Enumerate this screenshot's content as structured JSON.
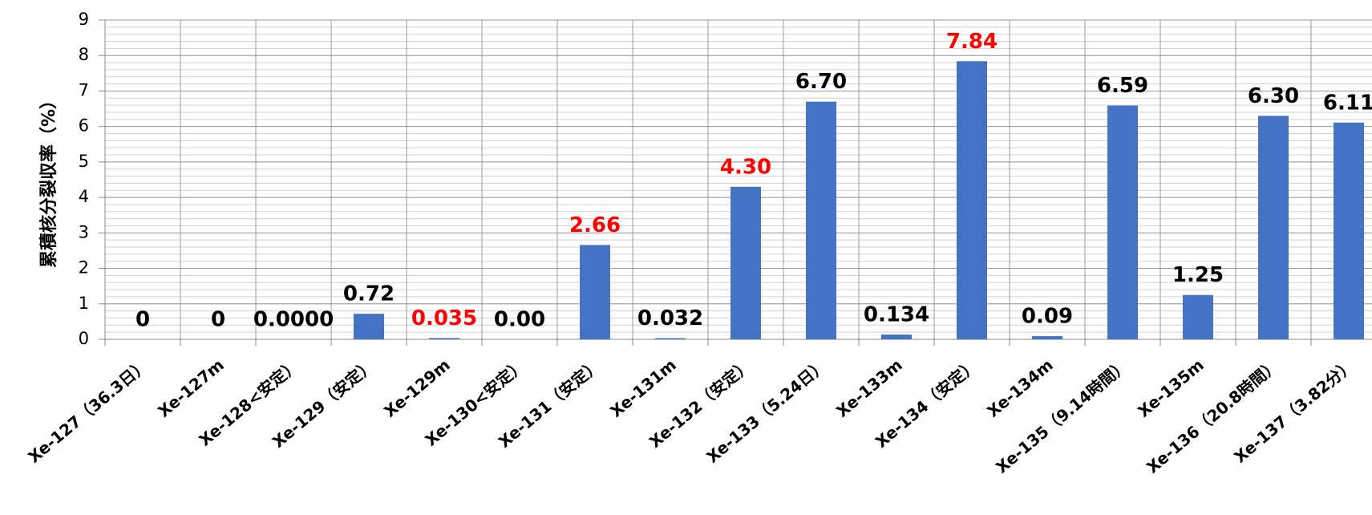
{
  "chart_data": {
    "type": "bar",
    "y_label": "累積核分裂収率（%）",
    "categories": [
      "Xe-127（36.3日）",
      "Xe-127m",
      "Xe-128<安定）",
      "Xe-129（安定）",
      "Xe-129m",
      "Xe-130<安定）",
      "Xe-131（安定）",
      "Xe-131m",
      "Xe-132（安定）",
      "Xe-133（5.24日）",
      "Xe-133m",
      "Xe-134（安定）",
      "Xe-134m",
      "Xe-135（9.14時間）",
      "Xe-135m",
      "Xe-136（20.8時間）",
      "Xe-137（3.82分）"
    ],
    "values": [
      0,
      0,
      0,
      0.72,
      0.035,
      0,
      2.66,
      0.032,
      4.3,
      6.7,
      0.134,
      7.84,
      0.09,
      6.59,
      1.25,
      6.3,
      6.11
    ],
    "value_labels": [
      "0",
      "0",
      "0.0000",
      "0.72",
      "0.035",
      "0.00",
      "2.66",
      "0.032",
      "4.30",
      "6.70",
      "0.134",
      "7.84",
      "0.09",
      "6.59",
      "1.25",
      "6.30",
      "6.11"
    ],
    "value_label_colors": [
      "#000000",
      "#000000",
      "#000000",
      "#000000",
      "#ff0000",
      "#000000",
      "#ff0000",
      "#000000",
      "#ff0000",
      "#000000",
      "#000000",
      "#ff0000",
      "#000000",
      "#000000",
      "#000000",
      "#000000",
      "#000000"
    ],
    "color": "#4472c4",
    "ylim": [
      0,
      9
    ],
    "yticks": [
      0,
      1,
      2,
      3,
      4,
      5,
      6,
      7,
      8,
      9
    ],
    "grid": true,
    "minor_grid_step": 0.2
  }
}
